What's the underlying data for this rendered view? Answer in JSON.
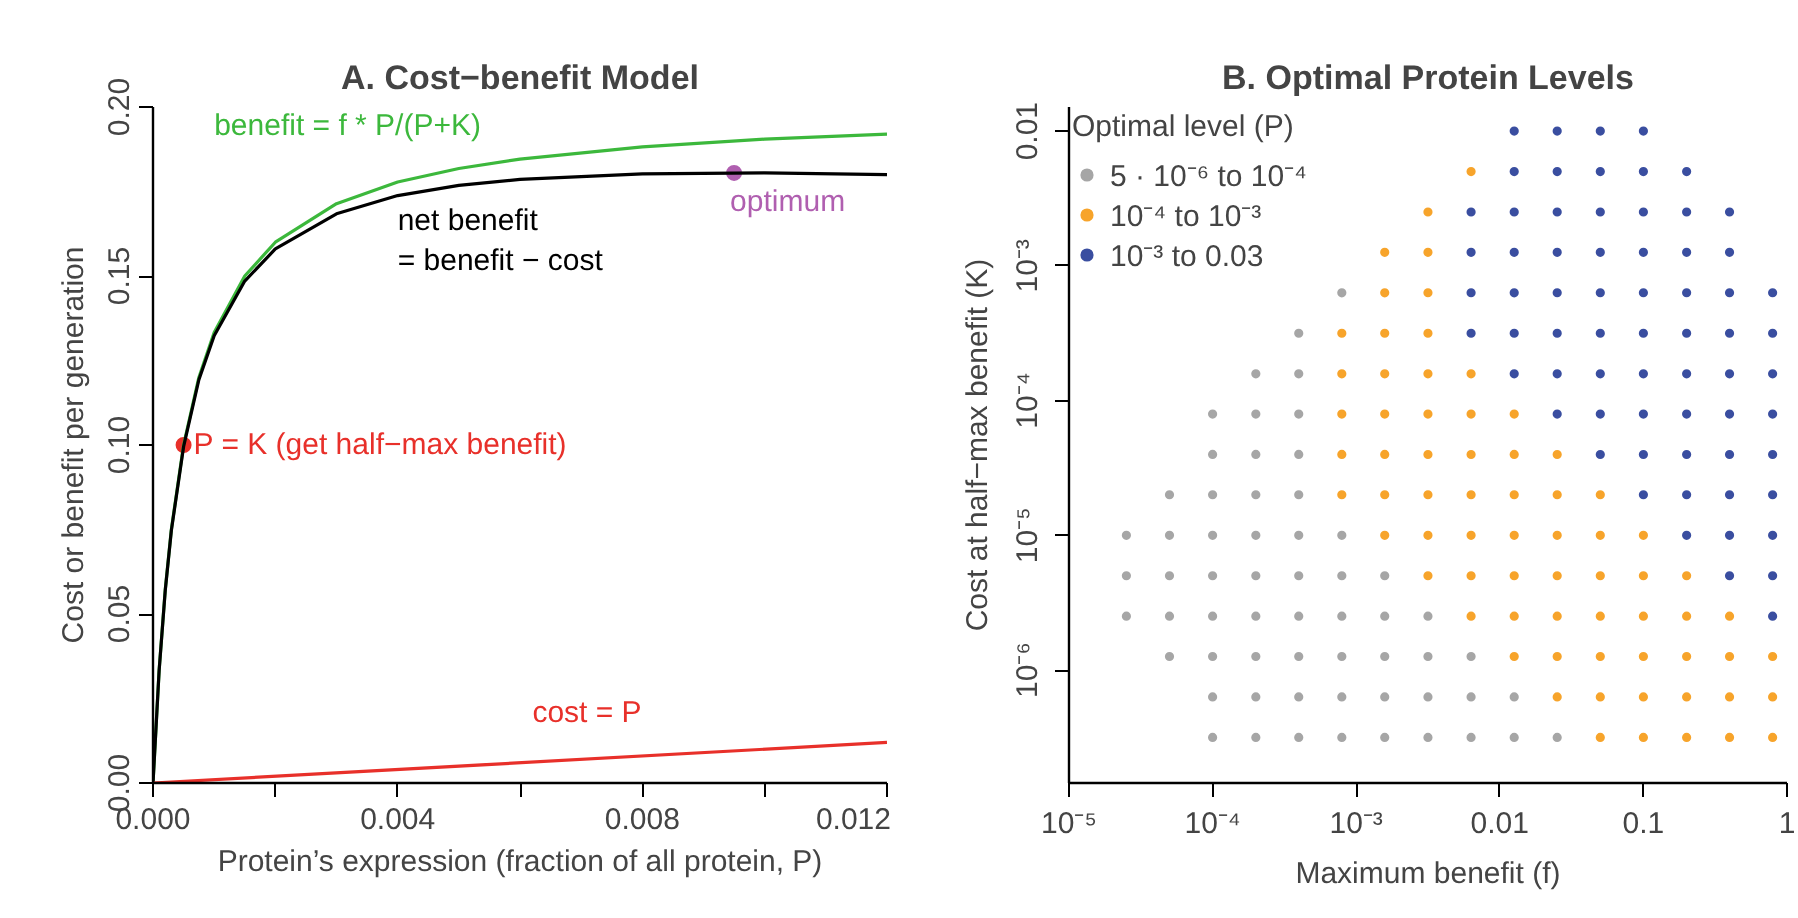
{
  "chart_data": [
    {
      "type": "line",
      "title": "A. Cost−benefit Model",
      "xlabel": "Protein’s expression (fraction of all protein, P)",
      "ylabel": "Cost or benefit per generation",
      "xlim": [
        0,
        0.012
      ],
      "ylim": [
        0,
        0.2
      ],
      "xticks": [
        {
          "value": 0,
          "label": "0.000"
        },
        {
          "value": 0.002,
          "label": null
        },
        {
          "value": 0.004,
          "label": "0.004"
        },
        {
          "value": 0.006,
          "label": null
        },
        {
          "value": 0.008,
          "label": "0.008"
        },
        {
          "value": 0.01,
          "label": null
        },
        {
          "value": 0.012,
          "label": "0.012"
        }
      ],
      "yticks": [
        {
          "value": 0,
          "label": "0.00"
        },
        {
          "value": 0.05,
          "label": "0.05"
        },
        {
          "value": 0.1,
          "label": "0.10"
        },
        {
          "value": 0.15,
          "label": "0.15"
        },
        {
          "value": 0.2,
          "label": "0.20"
        }
      ],
      "series": [
        {
          "name": "benefit = f * P/(P+K)",
          "type": "line",
          "color": "#3cb83c",
          "x": [
            0,
            0.0001,
            0.0002,
            0.0003,
            0.0005,
            0.00075,
            0.001,
            0.0015,
            0.002,
            0.003,
            0.004,
            0.005,
            0.006,
            0.008,
            0.01,
            0.012
          ],
          "values": [
            0,
            0.0333,
            0.0571,
            0.075,
            0.1,
            0.12,
            0.1333,
            0.15,
            0.16,
            0.1714,
            0.1778,
            0.1818,
            0.1846,
            0.1882,
            0.1905,
            0.192
          ]
        },
        {
          "name": "net benefit\n= benefit − cost",
          "type": "line",
          "color": "#000000",
          "x": [
            0,
            0.0001,
            0.0002,
            0.0003,
            0.0005,
            0.00075,
            0.001,
            0.0015,
            0.002,
            0.003,
            0.004,
            0.005,
            0.006,
            0.008,
            0.01,
            0.012
          ],
          "values": [
            0,
            0.0332,
            0.0569,
            0.0747,
            0.0995,
            0.1193,
            0.1323,
            0.1485,
            0.158,
            0.1684,
            0.1738,
            0.1768,
            0.1786,
            0.1802,
            0.1805,
            0.18
          ]
        },
        {
          "name": "cost = P",
          "type": "line",
          "color": "#e8302a",
          "x": [
            0,
            0.012
          ],
          "values": [
            0,
            0.012
          ]
        },
        {
          "name": "P = K (get half−max benefit)",
          "type": "scatter",
          "marker": "circle",
          "color": "#e8302a",
          "x": [
            0.0005
          ],
          "values": [
            0.1
          ]
        },
        {
          "name": "optimum",
          "type": "scatter",
          "marker": "circle",
          "color": "#b05fb0",
          "x": [
            0.0095
          ],
          "values": [
            0.1805
          ]
        }
      ]
    },
    {
      "type": "scatter",
      "title": "B. Optimal Protein Levels",
      "xlabel": "Maximum benefit (f)",
      "ylabel": "Cost at half−max benefit (K)",
      "legend_title": "Optimal level (P)",
      "legend": "top left",
      "log": "xy",
      "marker": "circle",
      "xlim": [
        1e-05,
        1
      ],
      "ylim": [
        1.45e-07,
        0.0151
      ],
      "xticks": [
        {
          "value": 1e-05,
          "label": "10⁻⁵"
        },
        {
          "value": 0.0001,
          "label": "10⁻⁴"
        },
        {
          "value": 0.001,
          "label": "10⁻³"
        },
        {
          "value": 0.01,
          "label": "0.01"
        },
        {
          "value": 0.1,
          "label": "0.1"
        },
        {
          "value": 1,
          "label": "1"
        }
      ],
      "yticks": [
        {
          "value": 1e-06,
          "label": "10⁻⁶"
        },
        {
          "value": 1e-05,
          "label": "10⁻⁵"
        },
        {
          "value": 0.0001,
          "label": "10⁻⁴"
        },
        {
          "value": 0.001,
          "label": "10⁻³"
        },
        {
          "value": 0.01,
          "label": "0.01"
        }
      ],
      "series": [
        {
          "name": "5 · 10⁻⁶ to 10⁻⁴",
          "color": "#a6a6a6",
          "x": [
            2.51e-05,
            2.51e-05,
            2.51e-05,
            5.01e-05,
            5.01e-05,
            5.01e-05,
            5.01e-05,
            5.01e-05,
            0.0001,
            0.0001,
            0.0001,
            0.0001,
            0.0001,
            0.0001,
            0.0001,
            0.0001,
            0.0001,
            0.0002,
            0.0002,
            0.0002,
            0.0002,
            0.0002,
            0.0002,
            0.0002,
            0.0002,
            0.0002,
            0.0002,
            0.000398,
            0.000398,
            0.000398,
            0.000398,
            0.000398,
            0.000398,
            0.000398,
            0.000398,
            0.000398,
            0.000398,
            0.000398,
            0.000794,
            0.000794,
            0.000794,
            0.000794,
            0.000794,
            0.000794,
            0.000794,
            0.00158,
            0.00158,
            0.00158,
            0.00158,
            0.00158,
            0.00316,
            0.00316,
            0.00316,
            0.00316,
            0.00631,
            0.00631,
            0.00631,
            0.0126,
            0.0126,
            0.0251
          ],
          "values": [
            1e-05,
            5.01e-06,
            2.51e-06,
            2e-05,
            1e-05,
            5.01e-06,
            2.51e-06,
            1.26e-06,
            7.94e-05,
            3.98e-05,
            2e-05,
            1e-05,
            5.01e-06,
            2.51e-06,
            1.26e-06,
            6.31e-07,
            3.16e-07,
            0.000158,
            7.94e-05,
            3.98e-05,
            2e-05,
            1e-05,
            5.01e-06,
            2.51e-06,
            1.26e-06,
            6.31e-07,
            3.16e-07,
            0.000316,
            0.000158,
            7.94e-05,
            3.98e-05,
            2e-05,
            1e-05,
            5.01e-06,
            2.51e-06,
            1.26e-06,
            6.31e-07,
            3.16e-07,
            0.000631,
            1e-05,
            5.01e-06,
            2.51e-06,
            1.26e-06,
            6.31e-07,
            3.16e-07,
            5.01e-06,
            2.51e-06,
            1.26e-06,
            6.31e-07,
            3.16e-07,
            2.51e-06,
            1.26e-06,
            6.31e-07,
            3.16e-07,
            1.26e-06,
            6.31e-07,
            3.16e-07,
            6.31e-07,
            3.16e-07,
            3.16e-07
          ]
        },
        {
          "name": "10⁻⁴ to 10⁻³",
          "color": "#f7a42b",
          "x": [
            0.000794,
            0.000794,
            0.000794,
            0.000794,
            0.000794,
            0.00158,
            0.00158,
            0.00158,
            0.00158,
            0.00158,
            0.00158,
            0.00158,
            0.00158,
            0.00316,
            0.00316,
            0.00316,
            0.00316,
            0.00316,
            0.00316,
            0.00316,
            0.00316,
            0.00316,
            0.00316,
            0.00631,
            0.00631,
            0.00631,
            0.00631,
            0.00631,
            0.00631,
            0.00631,
            0.00631,
            0.0126,
            0.0126,
            0.0126,
            0.0126,
            0.0126,
            0.0126,
            0.0126,
            0.0251,
            0.0251,
            0.0251,
            0.0251,
            0.0251,
            0.0251,
            0.0251,
            0.0501,
            0.0501,
            0.0501,
            0.0501,
            0.0501,
            0.0501,
            0.0501,
            0.1,
            0.1,
            0.1,
            0.1,
            0.1,
            0.1,
            0.2,
            0.2,
            0.2,
            0.2,
            0.2,
            0.398,
            0.398,
            0.398,
            0.398,
            0.794,
            0.794,
            0.794
          ],
          "values": [
            0.000316,
            0.000158,
            7.94e-05,
            3.98e-05,
            2e-05,
            0.00126,
            0.000631,
            0.000316,
            0.000158,
            7.94e-05,
            3.98e-05,
            2e-05,
            1e-05,
            0.00251,
            0.00126,
            0.000631,
            0.000316,
            0.000158,
            7.94e-05,
            3.98e-05,
            2e-05,
            1e-05,
            5.01e-06,
            0.00501,
            0.000158,
            7.94e-05,
            3.98e-05,
            2e-05,
            1e-05,
            5.01e-06,
            2.51e-06,
            7.94e-05,
            3.98e-05,
            2e-05,
            1e-05,
            5.01e-06,
            2.51e-06,
            1.26e-06,
            3.98e-05,
            2e-05,
            1e-05,
            5.01e-06,
            2.51e-06,
            1.26e-06,
            6.31e-07,
            2e-05,
            1e-05,
            5.01e-06,
            2.51e-06,
            1.26e-06,
            6.31e-07,
            3.16e-07,
            1e-05,
            5.01e-06,
            2.51e-06,
            1.26e-06,
            6.31e-07,
            3.16e-07,
            5.01e-06,
            2.51e-06,
            1.26e-06,
            6.31e-07,
            3.16e-07,
            2.51e-06,
            1.26e-06,
            6.31e-07,
            3.16e-07,
            1.26e-06,
            6.31e-07,
            3.16e-07
          ]
        },
        {
          "name": "10⁻³ to 0.03",
          "color": "#3a4ea0",
          "x": [
            0.00631,
            0.00631,
            0.00631,
            0.00631,
            0.0126,
            0.0126,
            0.0126,
            0.0126,
            0.0126,
            0.0126,
            0.0126,
            0.0251,
            0.0251,
            0.0251,
            0.0251,
            0.0251,
            0.0251,
            0.0251,
            0.0251,
            0.0501,
            0.0501,
            0.0501,
            0.0501,
            0.0501,
            0.0501,
            0.0501,
            0.0501,
            0.0501,
            0.1,
            0.1,
            0.1,
            0.1,
            0.1,
            0.1,
            0.1,
            0.1,
            0.1,
            0.1,
            0.2,
            0.2,
            0.2,
            0.2,
            0.2,
            0.2,
            0.2,
            0.2,
            0.2,
            0.2,
            0.398,
            0.398,
            0.398,
            0.398,
            0.398,
            0.398,
            0.398,
            0.398,
            0.398,
            0.398,
            0.794,
            0.794,
            0.794,
            0.794,
            0.794,
            0.794,
            0.794,
            0.794,
            0.794
          ],
          "values": [
            0.00251,
            0.00126,
            0.000631,
            0.000316,
            0.01,
            0.00501,
            0.00251,
            0.00126,
            0.000631,
            0.000316,
            0.000158,
            0.01,
            0.00501,
            0.00251,
            0.00126,
            0.000631,
            0.000316,
            0.000158,
            7.94e-05,
            0.01,
            0.00501,
            0.00251,
            0.00126,
            0.000631,
            0.000316,
            0.000158,
            7.94e-05,
            3.98e-05,
            0.01,
            0.00501,
            0.00251,
            0.00126,
            0.000631,
            0.000316,
            0.000158,
            7.94e-05,
            3.98e-05,
            2e-05,
            0.00501,
            0.00251,
            0.00126,
            0.000631,
            0.000316,
            0.000158,
            7.94e-05,
            3.98e-05,
            2e-05,
            1e-05,
            0.00251,
            0.00126,
            0.000631,
            0.000316,
            0.000158,
            7.94e-05,
            3.98e-05,
            2e-05,
            1e-05,
            5.01e-06,
            0.000631,
            0.000316,
            0.000158,
            7.94e-05,
            3.98e-05,
            2e-05,
            1e-05,
            5.01e-06,
            2.51e-06
          ]
        }
      ]
    }
  ]
}
